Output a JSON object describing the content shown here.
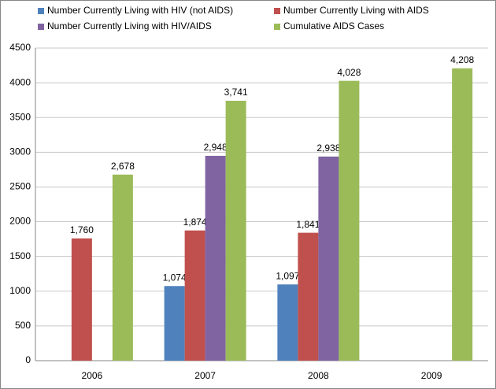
{
  "chart_data": {
    "type": "bar",
    "categories": [
      "2006",
      "2007",
      "2008",
      "2009"
    ],
    "series": [
      {
        "name": "Number Currently Living with HIV (not AIDS)",
        "color": "#4f81bd",
        "values": [
          null,
          1074,
          1097,
          null
        ],
        "value_labels": [
          null,
          "1,074",
          "1,097",
          null
        ]
      },
      {
        "name": "Number Currently Living with AIDS",
        "color": "#c0504d",
        "values": [
          1760,
          1874,
          1841,
          null
        ],
        "value_labels": [
          "1,760",
          "1,874",
          "1,841",
          null
        ]
      },
      {
        "name": "Number Currently Living with HIV/AIDS",
        "color": "#8064a2",
        "values": [
          null,
          2948,
          2938,
          null
        ],
        "value_labels": [
          null,
          "2,948",
          "2,938",
          null
        ]
      },
      {
        "name": "Cumulative AIDS Cases",
        "color": "#9bbb59",
        "values": [
          2678,
          3741,
          4028,
          4208
        ],
        "value_labels": [
          "2,678",
          "3,741",
          "4,028",
          "4,208"
        ]
      }
    ],
    "ylim": [
      0,
      4500
    ],
    "yticks": [
      0,
      500,
      1000,
      1500,
      2000,
      2500,
      3000,
      3500,
      4000,
      4500
    ],
    "grid": true
  }
}
